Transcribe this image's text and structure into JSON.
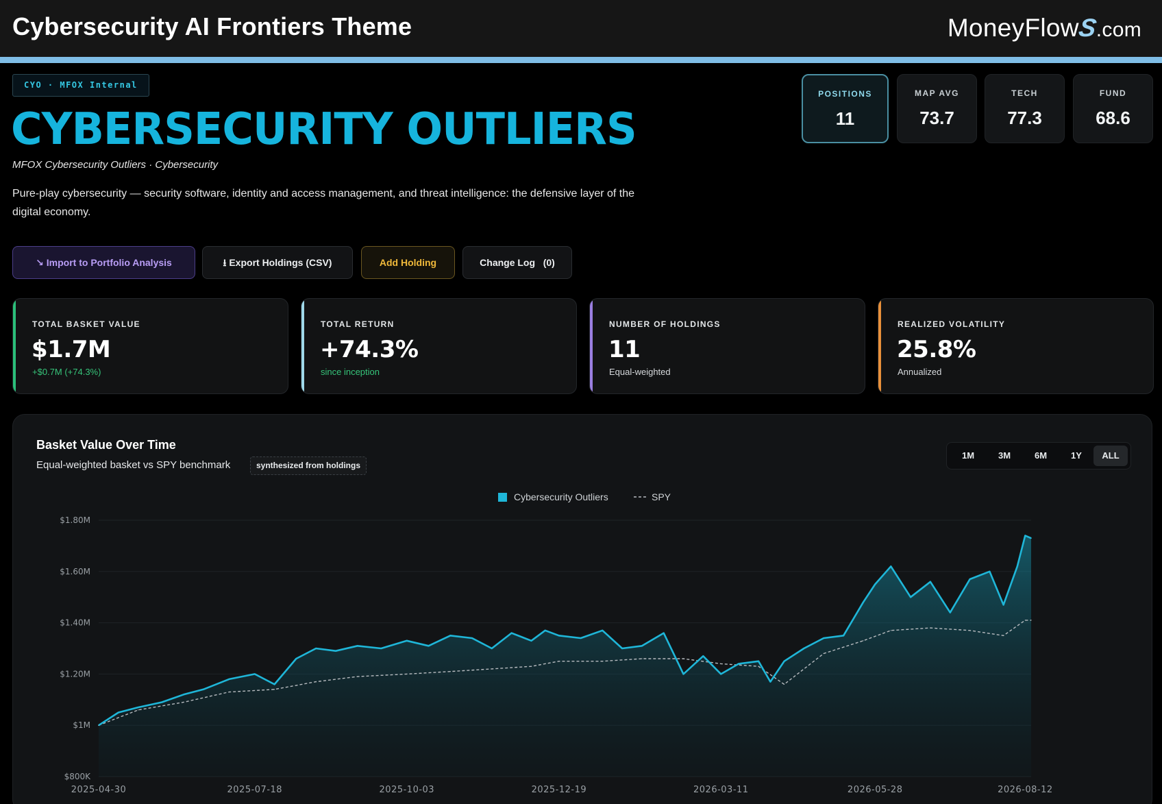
{
  "app": {
    "title": "Cybersecurity AI Frontiers Theme",
    "brand": {
      "name": "MoneyFlow",
      "glyph": "S",
      "suffix": ".com"
    }
  },
  "header": {
    "tag": "CYO · MFOX Internal",
    "title": "CYBERSECURITY OUTLIERS",
    "subtitle": "MFOX Cybersecurity Outliers · Cybersecurity",
    "description": "Pure-play cybersecurity — security software, identity and access management, and threat intelligence: the defensive layer of the digital economy."
  },
  "stat_chips": [
    {
      "label": "POSITIONS",
      "value": "11",
      "active": true
    },
    {
      "label": "MAP AVG",
      "value": "73.7",
      "active": false
    },
    {
      "label": "TECH",
      "value": "77.3",
      "active": false
    },
    {
      "label": "FUND",
      "value": "68.6",
      "active": false
    }
  ],
  "actions": {
    "import": "↘ Import to Portfolio Analysis",
    "export": "⭳ Export Holdings (CSV)",
    "add": "Add Holding",
    "changelog": "Change Log   (0)"
  },
  "kpis": [
    {
      "label": "TOTAL BASKET VALUE",
      "value": "$1.7M",
      "note": "+$0.7M (+74.3%)",
      "color": "#2bbf7a"
    },
    {
      "label": "TOTAL RETURN",
      "value": "+74.3%",
      "note": "since inception",
      "color": "#9fd9ea"
    },
    {
      "label": "NUMBER OF HOLDINGS",
      "value": "11",
      "note": "Equal-weighted",
      "color": "#9a7ee0"
    },
    {
      "label": "REALIZED VOLATILITY",
      "value": "25.8%",
      "note": "Annualized",
      "color": "#e8903a"
    }
  ],
  "chart": {
    "title": "Basket Value Over Time",
    "subtitle": "Equal-weighted basket vs SPY benchmark",
    "badge": "synthesized from holdings",
    "ranges": [
      "1M",
      "3M",
      "6M",
      "1Y",
      "ALL"
    ],
    "active_range": "ALL"
  },
  "chart_data": {
    "type": "area",
    "title": "Basket Value Over Time",
    "legend_position": "top-center",
    "grid": true,
    "ylim": [
      800000,
      1800000
    ],
    "y_ticks": [
      {
        "value": 800000,
        "label": "$800K"
      },
      {
        "value": 1000000,
        "label": "$1M"
      },
      {
        "value": 1200000,
        "label": "$1.20M"
      },
      {
        "value": 1400000,
        "label": "$1.40M"
      },
      {
        "value": 1600000,
        "label": "$1.60M"
      },
      {
        "value": 1800000,
        "label": "$1.80M"
      }
    ],
    "x_ticks": [
      "2025-04-30",
      "2025-07-18",
      "2025-10-03",
      "2025-12-19",
      "2026-03-11",
      "2026-05-28",
      "2026-08-12"
    ],
    "x_range": [
      "2025-04-30",
      "2026-08-15"
    ],
    "colors": {
      "basket": "#1fb6d8",
      "spy": "#b8bcc0"
    },
    "series": [
      {
        "name": "Cybersecurity Outliers",
        "style": "area",
        "x": [
          "2025-04-30",
          "2025-05-10",
          "2025-05-20",
          "2025-06-01",
          "2025-06-12",
          "2025-06-22",
          "2025-07-05",
          "2025-07-18",
          "2025-07-28",
          "2025-08-08",
          "2025-08-18",
          "2025-08-28",
          "2025-09-08",
          "2025-09-20",
          "2025-10-03",
          "2025-10-14",
          "2025-10-25",
          "2025-11-05",
          "2025-11-15",
          "2025-11-25",
          "2025-12-05",
          "2025-12-12",
          "2025-12-19",
          "2025-12-30",
          "2026-01-10",
          "2026-01-20",
          "2026-01-30",
          "2026-02-10",
          "2026-02-20",
          "2026-03-02",
          "2026-03-11",
          "2026-03-20",
          "2026-03-30",
          "2026-04-05",
          "2026-04-12",
          "2026-04-22",
          "2026-05-02",
          "2026-05-12",
          "2026-05-22",
          "2026-05-28",
          "2026-06-05",
          "2026-06-15",
          "2026-06-25",
          "2026-07-05",
          "2026-07-15",
          "2026-07-25",
          "2026-08-01",
          "2026-08-08",
          "2026-08-12",
          "2026-08-15"
        ],
        "values": [
          1000000,
          1050000,
          1070000,
          1090000,
          1120000,
          1140000,
          1180000,
          1200000,
          1160000,
          1260000,
          1300000,
          1290000,
          1310000,
          1300000,
          1330000,
          1310000,
          1350000,
          1340000,
          1300000,
          1360000,
          1330000,
          1370000,
          1350000,
          1340000,
          1370000,
          1300000,
          1310000,
          1360000,
          1200000,
          1270000,
          1200000,
          1240000,
          1250000,
          1170000,
          1250000,
          1300000,
          1340000,
          1350000,
          1480000,
          1550000,
          1620000,
          1500000,
          1560000,
          1440000,
          1570000,
          1600000,
          1470000,
          1620000,
          1740000,
          1730000
        ]
      },
      {
        "name": "SPY",
        "style": "dashed",
        "x": [
          "2025-04-30",
          "2025-05-20",
          "2025-06-12",
          "2025-07-05",
          "2025-07-28",
          "2025-08-18",
          "2025-09-08",
          "2025-10-03",
          "2025-10-25",
          "2025-11-15",
          "2025-12-05",
          "2025-12-19",
          "2026-01-10",
          "2026-01-30",
          "2026-02-20",
          "2026-03-11",
          "2026-03-30",
          "2026-04-12",
          "2026-05-02",
          "2026-05-22",
          "2026-06-05",
          "2026-06-25",
          "2026-07-15",
          "2026-08-01",
          "2026-08-12",
          "2026-08-15"
        ],
        "values": [
          1000000,
          1060000,
          1090000,
          1130000,
          1140000,
          1170000,
          1190000,
          1200000,
          1210000,
          1220000,
          1230000,
          1250000,
          1250000,
          1260000,
          1260000,
          1240000,
          1230000,
          1160000,
          1280000,
          1330000,
          1370000,
          1380000,
          1370000,
          1350000,
          1410000,
          1410000
        ]
      }
    ]
  }
}
